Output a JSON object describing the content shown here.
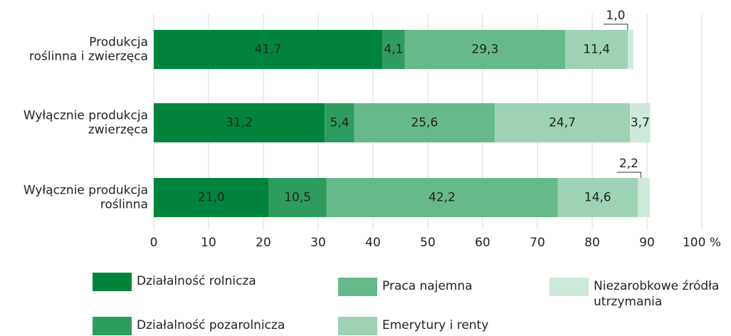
{
  "chart_data": {
    "type": "stacked-bar-horizontal",
    "categories": [
      [
        "Produkcja",
        "roślinna i zwierzęca"
      ],
      [
        "Wyłącznie produkcja",
        "zwierzęca"
      ],
      [
        "Wyłącznie produkcja",
        "roślinna"
      ]
    ],
    "series": [
      {
        "name": "Działalność rolnicza",
        "color": "#00843d",
        "values": [
          41.7,
          31.2,
          21.0
        ],
        "value_labels": [
          "41,7",
          "31,2",
          "21,0"
        ]
      },
      {
        "name": "Działalność pozarolnicza",
        "color": "#2e9c5e",
        "values": [
          4.1,
          5.4,
          10.5
        ],
        "value_labels": [
          "4,1",
          "5,4",
          "10,5"
        ]
      },
      {
        "name": "Praca najemna",
        "color": "#66b98a",
        "values": [
          29.3,
          25.6,
          42.2
        ],
        "value_labels": [
          "29,3",
          "25,6",
          "42,2"
        ]
      },
      {
        "name": "Emerytury i renty",
        "color": "#9dd2b4",
        "values": [
          11.4,
          24.7,
          14.6
        ],
        "value_labels": [
          "11,4",
          "24,7",
          "14,6"
        ]
      },
      {
        "name": "Niezarobkowe źródła utrzymania",
        "color": "#cde9d9",
        "values": [
          1.0,
          3.7,
          2.2
        ],
        "value_labels": [
          "1,0",
          "3,7",
          "2,2"
        ]
      }
    ],
    "xlim": [
      0,
      100
    ],
    "xticks": [
      0,
      10,
      20,
      30,
      40,
      50,
      60,
      70,
      80,
      90,
      {
        "value": 100,
        "label": "100 %"
      }
    ],
    "grid": true
  }
}
